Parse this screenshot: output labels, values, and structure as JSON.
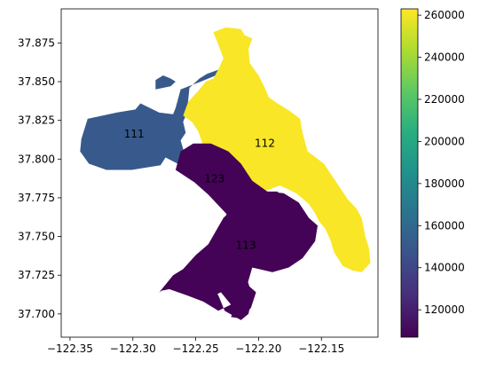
{
  "chart_data": {
    "type": "choropleth",
    "title": "",
    "xlabel": "",
    "ylabel": "",
    "xlim": [
      -122.357,
      -122.105
    ],
    "ylim": [
      37.685,
      37.897
    ],
    "xticks": [
      {
        "value": -122.35,
        "label": "−122.35"
      },
      {
        "value": -122.3,
        "label": "−122.30"
      },
      {
        "value": -122.25,
        "label": "−122.25"
      },
      {
        "value": -122.2,
        "label": "−122.20"
      },
      {
        "value": -122.15,
        "label": "−122.15"
      }
    ],
    "yticks": [
      {
        "value": 37.7,
        "label": "37.700"
      },
      {
        "value": 37.725,
        "label": "37.725"
      },
      {
        "value": 37.75,
        "label": "37.750"
      },
      {
        "value": 37.775,
        "label": "37.775"
      },
      {
        "value": 37.8,
        "label": "37.800"
      },
      {
        "value": 37.825,
        "label": "37.825"
      },
      {
        "value": 37.85,
        "label": "37.850"
      },
      {
        "value": 37.875,
        "label": "37.875"
      }
    ],
    "grid": false,
    "colorbar": {
      "colormap": "viridis",
      "range": [
        107000,
        263000
      ],
      "ticks": [
        {
          "value": 120000,
          "label": "120000"
        },
        {
          "value": 140000,
          "label": "140000"
        },
        {
          "value": 160000,
          "label": "160000"
        },
        {
          "value": 180000,
          "label": "180000"
        },
        {
          "value": 200000,
          "label": "200000"
        },
        {
          "value": 220000,
          "label": "220000"
        },
        {
          "value": 240000,
          "label": "240000"
        },
        {
          "value": 260000,
          "label": "260000"
        }
      ]
    },
    "regions": [
      {
        "id": "111",
        "label": "111",
        "value": 150000,
        "label_at": [
          -122.299,
          37.816
        ],
        "polygons": [
          [
            [
              -122.341,
              37.813
            ],
            [
              -122.336,
              37.826
            ],
            [
              -122.313,
              37.83
            ],
            [
              -122.298,
              37.832
            ],
            [
              -122.294,
              37.836
            ],
            [
              -122.279,
              37.83
            ],
            [
              -122.268,
              37.829
            ],
            [
              -122.266,
              37.833
            ],
            [
              -122.262,
              37.845
            ],
            [
              -122.246,
              37.85
            ],
            [
              -122.24,
              37.852
            ],
            [
              -122.231,
              37.855
            ],
            [
              -122.231,
              37.86
            ],
            [
              -122.231,
              37.858
            ],
            [
              -122.241,
              37.855
            ],
            [
              -122.247,
              37.852
            ],
            [
              -122.255,
              37.846
            ],
            [
              -122.257,
              37.83
            ],
            [
              -122.26,
              37.824
            ],
            [
              -122.258,
              37.817
            ],
            [
              -122.262,
              37.812
            ],
            [
              -122.258,
              37.801
            ],
            [
              -122.262,
              37.796
            ],
            [
              -122.274,
              37.801
            ],
            [
              -122.278,
              37.796
            ],
            [
              -122.301,
              37.793
            ],
            [
              -122.321,
              37.793
            ],
            [
              -122.335,
              37.797
            ],
            [
              -122.342,
              37.805
            ]
          ],
          [
            [
              -122.282,
              37.845
            ],
            [
              -122.27,
              37.847
            ],
            [
              -122.266,
              37.85
            ],
            [
              -122.27,
              37.852
            ],
            [
              -122.276,
              37.854
            ],
            [
              -122.282,
              37.851
            ]
          ]
        ]
      },
      {
        "id": "112",
        "label": "112",
        "value": 262000,
        "label_at": [
          -122.195,
          37.81
        ],
        "polygons": [
          [
            [
              -122.236,
              37.882
            ],
            [
              -122.226,
              37.885
            ],
            [
              -122.214,
              37.884
            ],
            [
              -122.211,
              37.88
            ],
            [
              -122.205,
              37.878
            ],
            [
              -122.208,
              37.871
            ],
            [
              -122.207,
              37.862
            ],
            [
              -122.2,
              37.854
            ],
            [
              -122.195,
              37.846
            ],
            [
              -122.192,
              37.84
            ],
            [
              -122.185,
              37.836
            ],
            [
              -122.175,
              37.831
            ],
            [
              -122.167,
              37.826
            ],
            [
              -122.165,
              37.817
            ],
            [
              -122.161,
              37.805
            ],
            [
              -122.148,
              37.797
            ],
            [
              -122.138,
              37.785
            ],
            [
              -122.129,
              37.774
            ],
            [
              -122.122,
              37.768
            ],
            [
              -122.118,
              37.762
            ],
            [
              -122.115,
              37.75
            ],
            [
              -122.112,
              37.742
            ],
            [
              -122.111,
              37.733
            ],
            [
              -122.118,
              37.727
            ],
            [
              -122.125,
              37.728
            ],
            [
              -122.133,
              37.731
            ],
            [
              -122.14,
              37.74
            ],
            [
              -122.143,
              37.748
            ],
            [
              -122.147,
              37.755
            ],
            [
              -122.152,
              37.76
            ],
            [
              -122.155,
              37.765
            ],
            [
              -122.16,
              37.771
            ],
            [
              -122.17,
              37.778
            ],
            [
              -122.183,
              37.783
            ],
            [
              -122.196,
              37.779
            ],
            [
              -122.207,
              37.775
            ],
            [
              -122.216,
              37.782
            ],
            [
              -122.223,
              37.788
            ],
            [
              -122.234,
              37.794
            ],
            [
              -122.24,
              37.797
            ],
            [
              -122.244,
              37.803
            ],
            [
              -122.245,
              37.811
            ],
            [
              -122.248,
              37.818
            ],
            [
              -122.253,
              37.824
            ],
            [
              -122.26,
              37.828
            ],
            [
              -122.256,
              37.837
            ],
            [
              -122.248,
              37.844
            ],
            [
              -122.242,
              37.85
            ],
            [
              -122.236,
              37.852
            ],
            [
              -122.232,
              37.858
            ],
            [
              -122.228,
              37.865
            ],
            [
              -122.232,
              37.874
            ]
          ],
          [
            [
              -122.224,
              37.828
            ],
            [
              -122.21,
              37.831
            ],
            [
              -122.204,
              37.824
            ],
            [
              -122.208,
              37.816
            ],
            [
              -122.221,
              37.815
            ],
            [
              -122.228,
              37.822
            ]
          ]
        ]
      },
      {
        "id": "123",
        "label": "123",
        "value": 108000,
        "label_at": [
          -122.235,
          37.787
        ],
        "polygons": [
          [
            [
              -122.262,
              37.805
            ],
            [
              -122.252,
              37.81
            ],
            [
              -122.238,
              37.81
            ],
            [
              -122.224,
              37.805
            ],
            [
              -122.214,
              37.797
            ],
            [
              -122.205,
              37.786
            ],
            [
              -122.193,
              37.779
            ],
            [
              -122.185,
              37.779
            ],
            [
              -122.178,
              37.773
            ],
            [
              -122.168,
              37.766
            ],
            [
              -122.16,
              37.753
            ],
            [
              -122.167,
              37.741
            ],
            [
              -122.176,
              37.734
            ],
            [
              -122.191,
              37.728
            ],
            [
              -122.205,
              37.73
            ],
            [
              -122.217,
              37.726
            ],
            [
              -122.228,
              37.73
            ],
            [
              -122.236,
              37.727
            ],
            [
              -122.239,
              37.719
            ],
            [
              -122.232,
              37.712
            ],
            [
              -122.227,
              37.702
            ],
            [
              -122.214,
              37.696
            ],
            [
              -122.208,
              37.7
            ],
            [
              -122.205,
              37.712
            ],
            [
              -122.209,
              37.722
            ],
            [
              -122.214,
              37.733
            ],
            [
              -122.219,
              37.755
            ],
            [
              -122.226,
              37.765
            ],
            [
              -122.24,
              37.777
            ],
            [
              -122.251,
              37.785
            ],
            [
              -122.266,
              37.793
            ]
          ],
          [
            [
              -122.258,
              37.724
            ],
            [
              -122.246,
              37.735
            ],
            [
              -122.24,
              37.731
            ],
            [
              -122.232,
              37.716
            ],
            [
              -122.222,
              37.706
            ],
            [
              -122.232,
              37.702
            ],
            [
              -122.248,
              37.71
            ]
          ]
        ]
      },
      {
        "id": "113",
        "label": "113",
        "value": 108000,
        "label_at": [
          -122.21,
          37.744
        ],
        "polygons": [
          [
            [
              -122.207,
              37.775
            ],
            [
              -122.193,
              37.779
            ],
            [
              -122.18,
              37.778
            ],
            [
              -122.168,
              37.772
            ],
            [
              -122.16,
              37.762
            ],
            [
              -122.153,
              37.757
            ],
            [
              -122.155,
              37.747
            ],
            [
              -122.165,
              37.736
            ],
            [
              -122.176,
              37.73
            ],
            [
              -122.189,
              37.727
            ],
            [
              -122.205,
              37.73
            ],
            [
              -122.209,
              37.719
            ],
            [
              -122.202,
              37.714
            ],
            [
              -122.206,
              37.704
            ],
            [
              -122.213,
              37.697
            ],
            [
              -122.222,
              37.698
            ],
            [
              -122.218,
              37.705
            ],
            [
              -122.221,
              37.712
            ],
            [
              -122.23,
              37.714
            ],
            [
              -122.244,
              37.708
            ],
            [
              -122.257,
              37.712
            ],
            [
              -122.271,
              37.716
            ],
            [
              -122.277,
              37.715
            ],
            [
              -122.279,
              37.714
            ],
            [
              -122.268,
              37.725
            ],
            [
              -122.26,
              37.729
            ],
            [
              -122.25,
              37.738
            ],
            [
              -122.24,
              37.745
            ],
            [
              -122.228,
              37.762
            ],
            [
              -122.218,
              37.77
            ]
          ]
        ]
      }
    ]
  }
}
